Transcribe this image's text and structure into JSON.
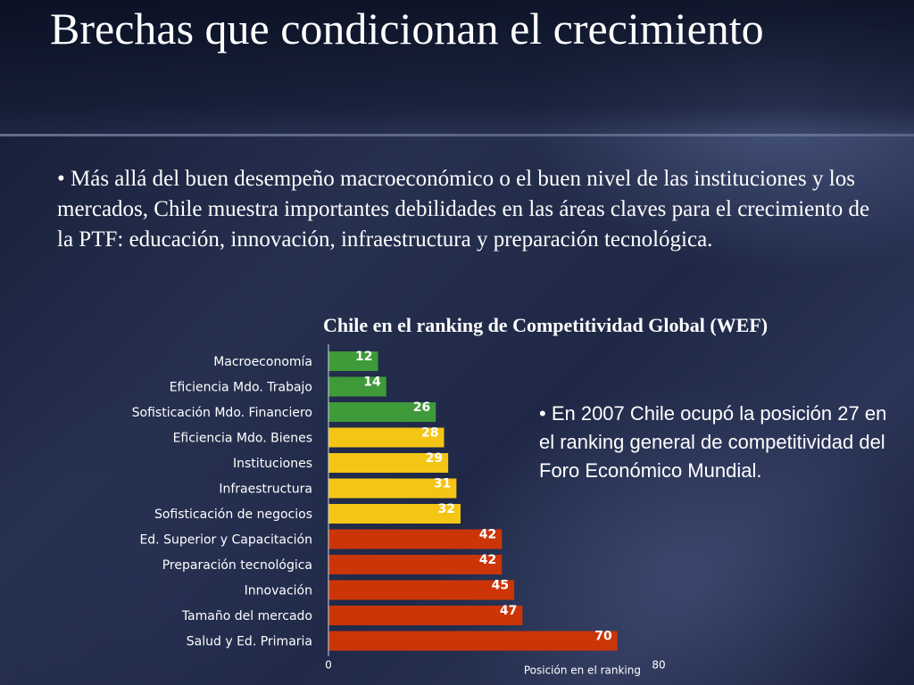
{
  "slide": {
    "title": "Brechas que condicionan el crecimiento",
    "bullet": "• Más allá del buen desempeño macroeconómico o el buen nivel de las instituciones y los mercados, Chile muestra importantes debilidades en las áreas claves para el crecimiento de la PTF: educación, innovación, infraestructura y preparación tecnológica.",
    "side_note": "• En 2007 Chile ocupó la posición 27 en el ranking general de competitividad del Foro Económico Mundial."
  },
  "colors": {
    "green": "#3f9a3a",
    "yellow": "#f4c515",
    "red": "#cc3508"
  },
  "chart_data": {
    "type": "bar",
    "orientation": "horizontal",
    "title": "Chile en el ranking de Competitividad Global (WEF)",
    "xlabel": "Posición en el ranking",
    "xlim": [
      0,
      80
    ],
    "x_ticks": [
      "0",
      "80"
    ],
    "categories": [
      "Macroeconomía",
      "Eficiencia Mdo. Trabajo",
      "Sofisticación Mdo. Financiero",
      "Eficiencia Mdo. Bienes",
      "Instituciones",
      "Infraestructura",
      "Sofisticación de negocios",
      "Ed. Superior y Capacitación",
      "Preparación tecnológica",
      "Innovación",
      "Tamaño del mercado",
      "Salud y Ed. Primaria"
    ],
    "values": [
      12,
      14,
      26,
      28,
      29,
      31,
      32,
      42,
      42,
      45,
      47,
      70
    ],
    "bar_colors": [
      "green",
      "green",
      "green",
      "yellow",
      "yellow",
      "yellow",
      "yellow",
      "red",
      "red",
      "red",
      "red",
      "red"
    ],
    "grid": false,
    "legend": "none"
  }
}
